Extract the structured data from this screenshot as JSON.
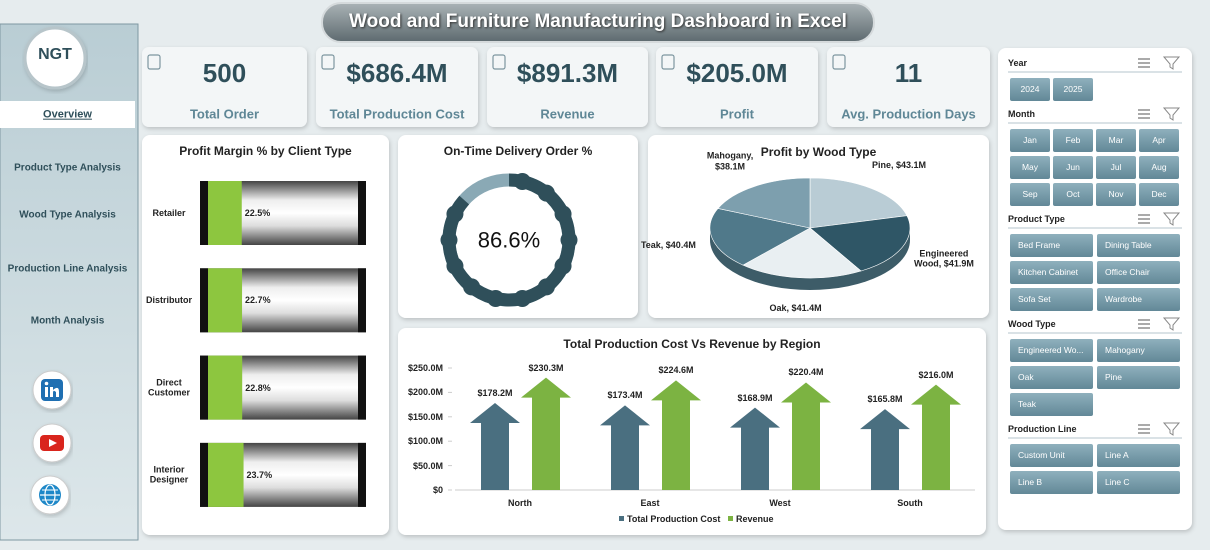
{
  "header": {
    "title": "Wood and Furniture Manufacturing Dashboard in Excel"
  },
  "logo": {
    "text": "NGT"
  },
  "sidebar": {
    "items": [
      "Overview",
      "Product Type Analysis",
      "Wood Type Analysis",
      "Production Line Analysis",
      "Month Analysis"
    ]
  },
  "kpis": [
    {
      "value": "500",
      "label": "Total Order"
    },
    {
      "value": "$686.4M",
      "label": "Total Production Cost"
    },
    {
      "value": "$891.3M",
      "label": "Revenue"
    },
    {
      "value": "$205.0M",
      "label": "Profit"
    },
    {
      "value": "11",
      "label": "Avg. Production Days"
    }
  ],
  "chart_data": [
    {
      "type": "hbar",
      "title": "Profit Margin % by Client Type",
      "categories": [
        "Retailer",
        "Distributor",
        "Direct Customer",
        "Interior Designer"
      ],
      "values": [
        22.5,
        22.7,
        22.8,
        23.7
      ],
      "value_labels": [
        "22.5%",
        "22.7%",
        "22.8%",
        "23.7%"
      ],
      "xlim": [
        0,
        100
      ],
      "color": "#8dc63f"
    },
    {
      "type": "gauge",
      "title": "On-Time Delivery Order %",
      "value": 86.6,
      "value_label": "86.6%",
      "lim": [
        0,
        100
      ],
      "color": "#2f4f5a",
      "track_color": "#8aa9b5"
    },
    {
      "type": "pie",
      "title": "Profit by Wood Type",
      "values": [
        43.1,
        41.9,
        41.4,
        40.4,
        38.1
      ],
      "value_labels": [
        "Pine, $43.1M",
        "Engineered Wood, $41.9M",
        "Oak, $41.4M",
        "Teak, $40.4M",
        "Mahogany, $38.1M"
      ],
      "colors": [
        "#b9ccd5",
        "#2f5666",
        "#e9eff2",
        "#50798a",
        "#7d9fae"
      ]
    },
    {
      "type": "arrowbar",
      "title": "Total Production Cost Vs Revenue by Region",
      "categories": [
        "North",
        "East",
        "West",
        "South"
      ],
      "series": [
        {
          "name": "Total Production Cost",
          "color": "#4a6f80",
          "values": [
            178.2,
            173.4,
            168.9,
            165.8
          ],
          "value_labels": [
            "$178.2M",
            "$173.4M",
            "$168.9M",
            "$165.8M"
          ]
        },
        {
          "name": "Revenue",
          "color": "#7cb342",
          "values": [
            230.3,
            224.6,
            220.4,
            216.0
          ],
          "value_labels": [
            "$230.3M",
            "$224.6M",
            "$220.4M",
            "$216.0M"
          ]
        }
      ],
      "ylim": [
        0,
        250
      ],
      "yticks": [
        {
          "value": 0,
          "label": "$0"
        },
        {
          "value": 50,
          "label": "$50.0M"
        },
        {
          "value": 100,
          "label": "$100.0M"
        },
        {
          "value": 150,
          "label": "$150.0M"
        },
        {
          "value": 200,
          "label": "$200.0M"
        },
        {
          "value": 250,
          "label": "$250.0M"
        }
      ]
    }
  ],
  "slicers": [
    {
      "title": "Year",
      "items": [
        "2024",
        "2025"
      ]
    },
    {
      "title": "Month",
      "items": [
        "Jan",
        "Feb",
        "Mar",
        "Apr",
        "May",
        "Jun",
        "Jul",
        "Aug",
        "Sep",
        "Oct",
        "Nov",
        "Dec"
      ]
    },
    {
      "title": "Product Type",
      "items": [
        "Bed Frame",
        "Dining Table",
        "Kitchen Cabinet",
        "Office Chair",
        "Sofa Set",
        "Wardrobe"
      ]
    },
    {
      "title": "Wood Type",
      "items": [
        "Engineered Wo...",
        "Mahogany",
        "Oak",
        "Pine",
        "Teak"
      ]
    },
    {
      "title": "Production Line",
      "items": [
        "Custom Unit",
        "Line A",
        "Line B",
        "Line C"
      ]
    }
  ]
}
